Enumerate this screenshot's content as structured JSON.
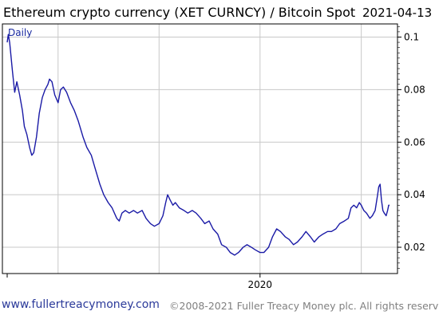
{
  "chart_data": {
    "type": "line",
    "title": "Ethereum crypto currency  (XET CURNCY) / Bitcoin Spot",
    "date_label": "2021-04-13",
    "period_label": "Daily",
    "ylim": [
      0.01,
      0.105
    ],
    "y_ticks": [
      0.02,
      0.04,
      0.06,
      0.08,
      0.1
    ],
    "y_tick_labels": [
      "0.02",
      "0.04",
      "0.06",
      "0.08",
      "0.1"
    ],
    "x_tick_labels": [
      {
        "label": "2020",
        "x": "2020-01-01"
      }
    ],
    "xlim": [
      "2017-07-01",
      "2021-04-13"
    ],
    "grid": true,
    "series": [
      {
        "color": "#1a1aa6",
        "points": [
          [
            "2017-07-01",
            0.098
          ],
          [
            "2017-07-05",
            0.101
          ],
          [
            "2017-07-10",
            0.098
          ],
          [
            "2017-07-20",
            0.087
          ],
          [
            "2017-07-28",
            0.079
          ],
          [
            "2017-08-05",
            0.083
          ],
          [
            "2017-08-15",
            0.078
          ],
          [
            "2017-08-25",
            0.072
          ],
          [
            "2017-09-01",
            0.066
          ],
          [
            "2017-09-10",
            0.063
          ],
          [
            "2017-09-20",
            0.058
          ],
          [
            "2017-09-28",
            0.055
          ],
          [
            "2017-10-05",
            0.056
          ],
          [
            "2017-10-15",
            0.062
          ],
          [
            "2017-10-25",
            0.071
          ],
          [
            "2017-11-05",
            0.077
          ],
          [
            "2017-11-15",
            0.08
          ],
          [
            "2017-11-25",
            0.082
          ],
          [
            "2017-12-01",
            0.084
          ],
          [
            "2017-12-10",
            0.083
          ],
          [
            "2017-12-20",
            0.078
          ],
          [
            "2018-01-01",
            0.075
          ],
          [
            "2018-01-10",
            0.08
          ],
          [
            "2018-01-20",
            0.081
          ],
          [
            "2018-02-01",
            0.079
          ],
          [
            "2018-02-15",
            0.075
          ],
          [
            "2018-03-01",
            0.072
          ],
          [
            "2018-03-15",
            0.068
          ],
          [
            "2018-04-01",
            0.062
          ],
          [
            "2018-04-15",
            0.058
          ],
          [
            "2018-05-01",
            0.055
          ],
          [
            "2018-05-15",
            0.05
          ],
          [
            "2018-06-01",
            0.044
          ],
          [
            "2018-06-15",
            0.04
          ],
          [
            "2018-07-01",
            0.037
          ],
          [
            "2018-07-15",
            0.035
          ],
          [
            "2018-08-01",
            0.031
          ],
          [
            "2018-08-10",
            0.03
          ],
          [
            "2018-08-20",
            0.033
          ],
          [
            "2018-09-01",
            0.034
          ],
          [
            "2018-09-15",
            0.033
          ],
          [
            "2018-10-01",
            0.034
          ],
          [
            "2018-10-15",
            0.033
          ],
          [
            "2018-11-01",
            0.034
          ],
          [
            "2018-11-15",
            0.031
          ],
          [
            "2018-12-01",
            0.029
          ],
          [
            "2018-12-15",
            0.028
          ],
          [
            "2019-01-01",
            0.029
          ],
          [
            "2019-01-15",
            0.032
          ],
          [
            "2019-01-25",
            0.037
          ],
          [
            "2019-02-01",
            0.04
          ],
          [
            "2019-02-10",
            0.038
          ],
          [
            "2019-02-20",
            0.036
          ],
          [
            "2019-03-01",
            0.037
          ],
          [
            "2019-03-15",
            0.035
          ],
          [
            "2019-04-01",
            0.034
          ],
          [
            "2019-04-15",
            0.033
          ],
          [
            "2019-05-01",
            0.034
          ],
          [
            "2019-05-15",
            0.033
          ],
          [
            "2019-06-01",
            0.031
          ],
          [
            "2019-06-15",
            0.029
          ],
          [
            "2019-07-01",
            0.03
          ],
          [
            "2019-07-15",
            0.027
          ],
          [
            "2019-08-01",
            0.025
          ],
          [
            "2019-08-15",
            0.021
          ],
          [
            "2019-09-01",
            0.02
          ],
          [
            "2019-09-15",
            0.018
          ],
          [
            "2019-10-01",
            0.017
          ],
          [
            "2019-10-15",
            0.018
          ],
          [
            "2019-11-01",
            0.02
          ],
          [
            "2019-11-15",
            0.021
          ],
          [
            "2019-12-01",
            0.02
          ],
          [
            "2019-12-15",
            0.019
          ],
          [
            "2020-01-01",
            0.018
          ],
          [
            "2020-01-15",
            0.018
          ],
          [
            "2020-02-01",
            0.02
          ],
          [
            "2020-02-15",
            0.024
          ],
          [
            "2020-03-01",
            0.027
          ],
          [
            "2020-03-15",
            0.026
          ],
          [
            "2020-04-01",
            0.024
          ],
          [
            "2020-04-15",
            0.023
          ],
          [
            "2020-05-01",
            0.021
          ],
          [
            "2020-05-15",
            0.022
          ],
          [
            "2020-06-01",
            0.024
          ],
          [
            "2020-06-15",
            0.026
          ],
          [
            "2020-07-01",
            0.024
          ],
          [
            "2020-07-15",
            0.022
          ],
          [
            "2020-08-01",
            0.024
          ],
          [
            "2020-08-15",
            0.025
          ],
          [
            "2020-09-01",
            0.026
          ],
          [
            "2020-09-15",
            0.026
          ],
          [
            "2020-10-01",
            0.027
          ],
          [
            "2020-10-15",
            0.029
          ],
          [
            "2020-11-01",
            0.03
          ],
          [
            "2020-11-15",
            0.031
          ],
          [
            "2020-11-25",
            0.035
          ],
          [
            "2020-12-05",
            0.036
          ],
          [
            "2020-12-15",
            0.035
          ],
          [
            "2020-12-25",
            0.037
          ],
          [
            "2021-01-01",
            0.036
          ],
          [
            "2021-01-10",
            0.034
          ],
          [
            "2021-01-20",
            0.033
          ],
          [
            "2021-02-01",
            0.031
          ],
          [
            "2021-02-10",
            0.032
          ],
          [
            "2021-02-20",
            0.034
          ],
          [
            "2021-03-01",
            0.04
          ],
          [
            "2021-03-05",
            0.043
          ],
          [
            "2021-03-10",
            0.044
          ],
          [
            "2021-03-15",
            0.038
          ],
          [
            "2021-03-20",
            0.034
          ],
          [
            "2021-03-25",
            0.033
          ],
          [
            "2021-04-01",
            0.032
          ],
          [
            "2021-04-06",
            0.034
          ],
          [
            "2021-04-10",
            0.036
          ],
          [
            "2021-04-13",
            0.036
          ]
        ]
      }
    ]
  },
  "footer": {
    "website": "www.fullertreacymoney.com",
    "copyright": "©2008-2021 Fuller Treacy Money plc. All rights reserved"
  }
}
